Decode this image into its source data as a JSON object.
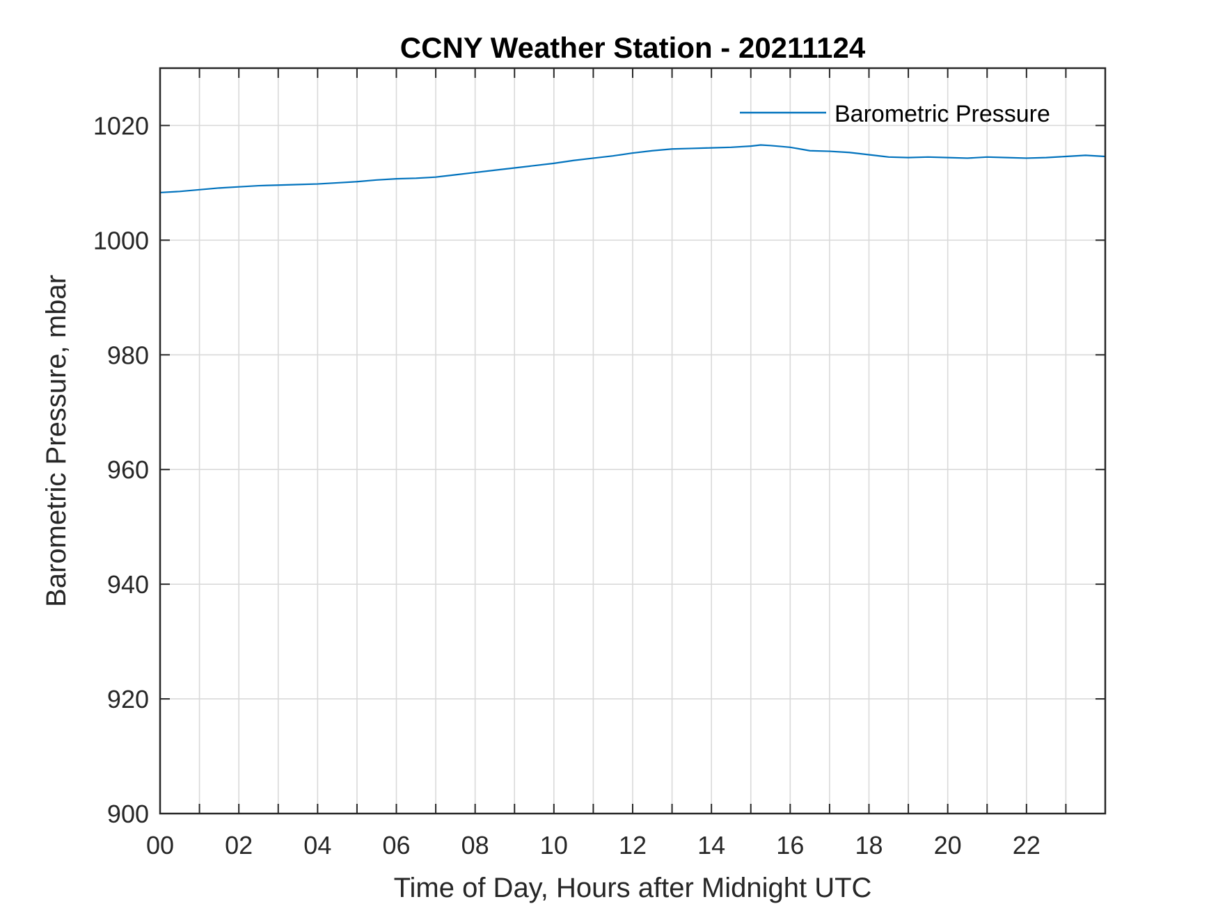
{
  "chart_data": {
    "type": "line",
    "title": "CCNY Weather Station - 20211124",
    "xlabel": "Time of Day, Hours after Midnight UTC",
    "ylabel": "Barometric Pressure, mbar",
    "xlim": [
      0,
      24
    ],
    "ylim": [
      900,
      1030
    ],
    "xticks": [
      0,
      2,
      4,
      6,
      8,
      10,
      12,
      14,
      16,
      18,
      20,
      22
    ],
    "xtick_labels": [
      "00",
      "02",
      "04",
      "06",
      "08",
      "10",
      "12",
      "14",
      "16",
      "18",
      "20",
      "22"
    ],
    "yticks": [
      900,
      920,
      940,
      960,
      980,
      1000,
      1020
    ],
    "ytick_labels": [
      "900",
      "920",
      "940",
      "960",
      "980",
      "1000",
      "1020"
    ],
    "grid": true,
    "legend_position": "top-right",
    "series": [
      {
        "name": "Barometric Pressure",
        "color": "#0072BD",
        "x": [
          0,
          0.5,
          1,
          1.5,
          2,
          2.5,
          3,
          3.5,
          4,
          4.5,
          5,
          5.5,
          6,
          6.5,
          7,
          7.5,
          8,
          8.5,
          9,
          9.5,
          10,
          10.5,
          11,
          11.5,
          12,
          12.5,
          13,
          13.5,
          14,
          14.5,
          15,
          15.25,
          15.5,
          16,
          16.5,
          17,
          17.5,
          18,
          18.5,
          19,
          19.5,
          20,
          20.5,
          21,
          21.5,
          22,
          22.5,
          23,
          23.5,
          24
        ],
        "y": [
          1008.3,
          1008.5,
          1008.8,
          1009.1,
          1009.3,
          1009.5,
          1009.6,
          1009.7,
          1009.8,
          1010.0,
          1010.2,
          1010.5,
          1010.7,
          1010.8,
          1011.0,
          1011.4,
          1011.8,
          1012.2,
          1012.6,
          1013.0,
          1013.4,
          1013.9,
          1014.3,
          1014.7,
          1015.2,
          1015.6,
          1015.9,
          1016.0,
          1016.1,
          1016.2,
          1016.4,
          1016.6,
          1016.5,
          1016.2,
          1015.6,
          1015.5,
          1015.3,
          1014.9,
          1014.5,
          1014.4,
          1014.5,
          1014.4,
          1014.3,
          1014.5,
          1014.4,
          1014.3,
          1014.4,
          1014.6,
          1014.8,
          1014.6
        ]
      }
    ]
  }
}
